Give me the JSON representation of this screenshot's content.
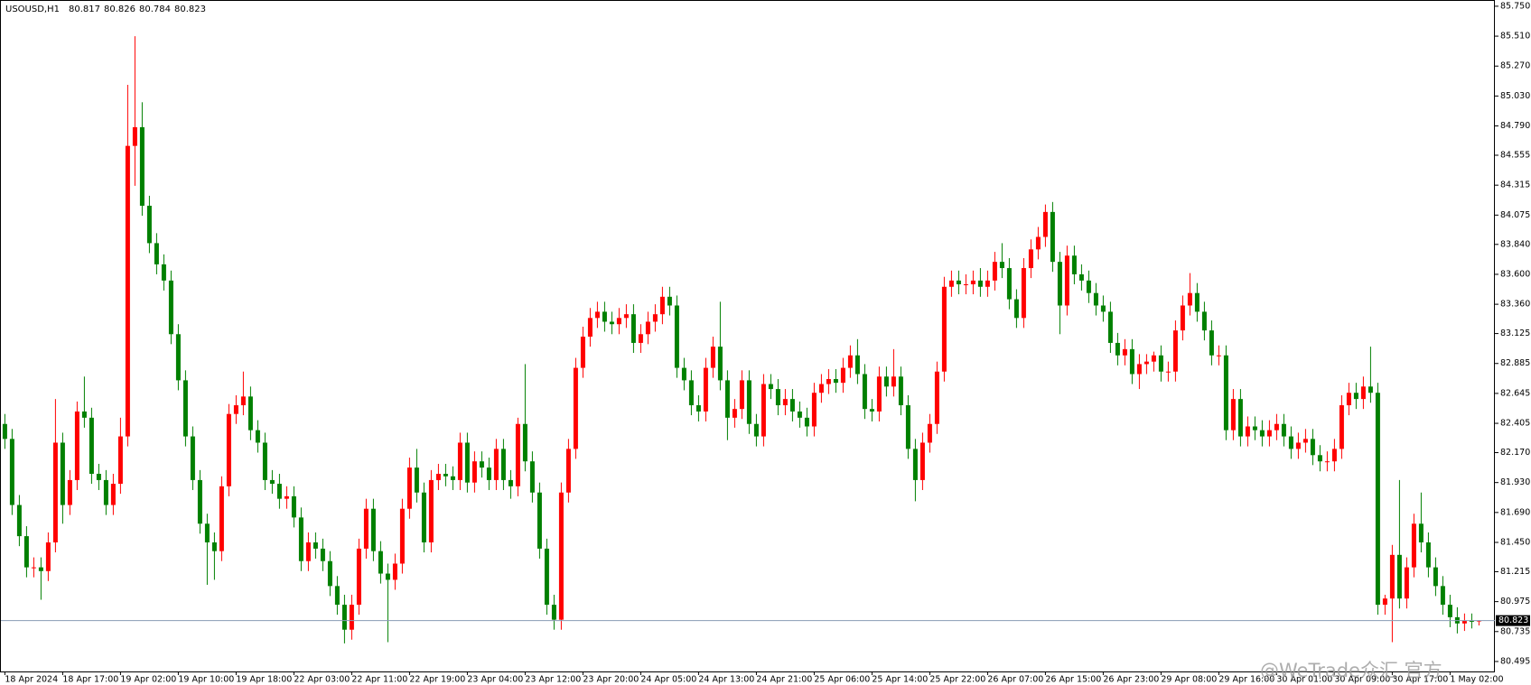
{
  "chart_data": {
    "type": "candlestick",
    "symbol": "USOUSD,H1",
    "watermark": "@WeTrade众汇 官方",
    "up_color": "#ff0000",
    "down_color": "#008000",
    "price_line_color": "#8a9bb5",
    "ylim": [
      80.415,
      85.8
    ],
    "yticks": [
      {
        "value": 85.75,
        "label": "85.750"
      },
      {
        "value": 85.51,
        "label": "85.510"
      },
      {
        "value": 85.27,
        "label": "85.270"
      },
      {
        "value": 85.03,
        "label": "85.030"
      },
      {
        "value": 84.79,
        "label": "84.790"
      },
      {
        "value": 84.555,
        "label": "84.555"
      },
      {
        "value": 84.315,
        "label": "84.315"
      },
      {
        "value": 84.075,
        "label": "84.075"
      },
      {
        "value": 83.84,
        "label": "83.840"
      },
      {
        "value": 83.6,
        "label": "83.600"
      },
      {
        "value": 83.36,
        "label": "83.360"
      },
      {
        "value": 83.125,
        "label": "83.125"
      },
      {
        "value": 82.885,
        "label": "82.885"
      },
      {
        "value": 82.645,
        "label": "82.645"
      },
      {
        "value": 82.405,
        "label": "82.405"
      },
      {
        "value": 82.17,
        "label": "82.170"
      },
      {
        "value": 81.93,
        "label": "81.930"
      },
      {
        "value": 81.69,
        "label": "81.690"
      },
      {
        "value": 81.45,
        "label": "81.450"
      },
      {
        "value": 81.215,
        "label": "81.215"
      },
      {
        "value": 80.975,
        "label": "80.975"
      },
      {
        "value": 80.735,
        "label": "80.735"
      },
      {
        "value": 80.495,
        "label": "80.495"
      }
    ],
    "categories": [
      "18 Apr 2024",
      null,
      null,
      null,
      null,
      null,
      null,
      null,
      "18 Apr 17:00",
      null,
      null,
      null,
      null,
      null,
      null,
      null,
      "19 Apr 02:00",
      null,
      null,
      null,
      null,
      null,
      null,
      null,
      "19 Apr 10:00",
      null,
      null,
      null,
      null,
      null,
      null,
      null,
      "19 Apr 18:00",
      null,
      null,
      null,
      null,
      null,
      null,
      null,
      "22 Apr 03:00",
      null,
      null,
      null,
      null,
      null,
      null,
      null,
      "22 Apr 11:00",
      null,
      null,
      null,
      null,
      null,
      null,
      null,
      "22 Apr 19:00",
      null,
      null,
      null,
      null,
      null,
      null,
      null,
      "23 Apr 04:00",
      null,
      null,
      null,
      null,
      null,
      null,
      null,
      "23 Apr 12:00",
      null,
      null,
      null,
      null,
      null,
      null,
      null,
      "23 Apr 20:00",
      null,
      null,
      null,
      null,
      null,
      null,
      null,
      "24 Apr 05:00",
      null,
      null,
      null,
      null,
      null,
      null,
      null,
      "24 Apr 13:00",
      null,
      null,
      null,
      null,
      null,
      null,
      null,
      "24 Apr 21:00",
      null,
      null,
      null,
      null,
      null,
      null,
      null,
      "25 Apr 06:00",
      null,
      null,
      null,
      null,
      null,
      null,
      null,
      "25 Apr 14:00",
      null,
      null,
      null,
      null,
      null,
      null,
      null,
      "25 Apr 22:00",
      null,
      null,
      null,
      null,
      null,
      null,
      null,
      "26 Apr 07:00",
      null,
      null,
      null,
      null,
      null,
      null,
      null,
      "26 Apr 15:00",
      null,
      null,
      null,
      null,
      null,
      null,
      null,
      "26 Apr 23:00",
      null,
      null,
      null,
      null,
      null,
      null,
      null,
      "29 Apr 08:00",
      null,
      null,
      null,
      null,
      null,
      null,
      null,
      "29 Apr 16:00",
      null,
      null,
      null,
      null,
      null,
      null,
      null,
      "30 Apr 01:00",
      null,
      null,
      null,
      null,
      null,
      null,
      null,
      "30 Apr 09:00",
      null,
      null,
      null,
      null,
      null,
      null,
      null,
      "30 Apr 17:00",
      null,
      null,
      null,
      null,
      null,
      null,
      null,
      "1 May 02:00",
      null,
      null,
      null,
      null
    ],
    "open": [
      82.4,
      82.28,
      81.75,
      81.5,
      81.25,
      81.25,
      81.22,
      81.45,
      82.25,
      81.75,
      81.95,
      82.5,
      82.45,
      82.0,
      81.95,
      81.75,
      81.92,
      82.3,
      84.63,
      84.78,
      84.15,
      83.85,
      83.68,
      83.55,
      83.12,
      82.75,
      82.3,
      81.95,
      81.6,
      81.45,
      81.38,
      81.9,
      82.48,
      82.55,
      82.62,
      82.35,
      82.25,
      81.95,
      81.92,
      81.8,
      81.82,
      81.65,
      81.3,
      81.45,
      81.4,
      81.3,
      81.1,
      80.95,
      80.75,
      80.95,
      81.4,
      81.72,
      81.38,
      81.2,
      81.15,
      81.28,
      81.72,
      82.05,
      81.85,
      81.45,
      81.95,
      82.0,
      81.98,
      81.95,
      82.25,
      81.93,
      82.1,
      82.05,
      81.95,
      82.2,
      81.95,
      81.9,
      82.4,
      82.1,
      81.85,
      81.4,
      80.95,
      80.83,
      81.85,
      82.2,
      82.85,
      83.1,
      83.25,
      83.3,
      83.22,
      83.2,
      83.25,
      83.28,
      83.05,
      83.12,
      83.22,
      83.28,
      83.42,
      83.35,
      82.85,
      82.75,
      82.55,
      82.5,
      82.85,
      83.02,
      82.75,
      82.45,
      82.52,
      82.75,
      82.4,
      82.3,
      82.72,
      82.68,
      82.55,
      82.6,
      82.5,
      82.45,
      82.38,
      82.65,
      82.72,
      82.76,
      82.73,
      82.85,
      82.95,
      82.8,
      82.52,
      82.5,
      82.78,
      82.7,
      82.78,
      82.55,
      82.2,
      81.95,
      82.25,
      82.4,
      82.82,
      83.5,
      83.55,
      83.52,
      83.52,
      83.55,
      83.5,
      83.55,
      83.7,
      83.65,
      83.4,
      83.25,
      83.65,
      83.8,
      83.9,
      84.1,
      83.7,
      83.35,
      83.75,
      83.6,
      83.55,
      83.45,
      83.35,
      83.3,
      83.05,
      82.95,
      83.0,
      82.8,
      82.88,
      82.9,
      82.95,
      82.82,
      82.82,
      83.15,
      83.35,
      83.45,
      83.3,
      83.15,
      82.95,
      82.95,
      82.35,
      82.6,
      82.3,
      82.38,
      82.35,
      82.3,
      82.35,
      82.4,
      82.3,
      82.2,
      82.25,
      82.28,
      82.15,
      82.1,
      82.1,
      82.2,
      82.55,
      82.65,
      82.6,
      82.7,
      82.65,
      80.95,
      81.0,
      81.35,
      81.0,
      81.25,
      81.6,
      81.45,
      81.25,
      81.1,
      80.95,
      80.85,
      80.8,
      80.82,
      80.817
    ],
    "high": [
      82.48,
      82.36,
      81.83,
      81.58,
      81.33,
      81.33,
      81.53,
      82.6,
      82.33,
      82.03,
      82.58,
      82.78,
      82.53,
      82.08,
      82.03,
      82.0,
      82.45,
      85.12,
      85.51,
      84.98,
      84.23,
      83.93,
      83.76,
      83.63,
      83.2,
      82.83,
      82.38,
      82.03,
      81.68,
      81.53,
      81.98,
      82.56,
      82.63,
      82.82,
      82.7,
      82.43,
      82.33,
      82.03,
      82.0,
      81.9,
      81.9,
      81.73,
      81.53,
      81.53,
      81.48,
      81.38,
      81.18,
      81.03,
      81.03,
      81.48,
      81.8,
      81.8,
      81.46,
      81.28,
      81.36,
      81.8,
      82.13,
      82.2,
      81.93,
      82.03,
      82.08,
      82.08,
      82.06,
      82.33,
      82.33,
      82.18,
      82.18,
      82.13,
      82.28,
      82.28,
      82.03,
      82.45,
      82.88,
      82.18,
      81.93,
      81.48,
      81.03,
      81.93,
      82.28,
      82.93,
      83.18,
      83.33,
      83.38,
      83.38,
      83.3,
      83.33,
      83.36,
      83.36,
      83.2,
      83.3,
      83.36,
      83.5,
      83.5,
      83.43,
      82.93,
      82.83,
      82.63,
      82.93,
      83.1,
      83.38,
      82.83,
      82.6,
      82.83,
      82.83,
      82.48,
      82.8,
      82.8,
      82.76,
      82.68,
      82.68,
      82.58,
      82.53,
      82.73,
      82.8,
      82.84,
      82.84,
      82.93,
      83.03,
      83.08,
      82.88,
      82.6,
      82.86,
      82.86,
      83.0,
      82.86,
      82.63,
      82.28,
      82.33,
      82.48,
      82.9,
      83.58,
      83.63,
      83.63,
      83.6,
      83.63,
      83.65,
      83.63,
      83.78,
      83.85,
      83.73,
      83.48,
      83.73,
      83.88,
      83.98,
      84.16,
      84.18,
      83.78,
      83.83,
      83.83,
      83.68,
      83.63,
      83.53,
      83.43,
      83.38,
      83.13,
      83.08,
      83.08,
      82.96,
      82.96,
      82.98,
      83.03,
      82.9,
      83.23,
      83.43,
      83.61,
      83.53,
      83.38,
      83.23,
      83.03,
      83.03,
      82.68,
      82.68,
      82.46,
      82.46,
      82.43,
      82.43,
      82.48,
      82.48,
      82.38,
      82.33,
      82.36,
      82.36,
      82.23,
      82.18,
      82.28,
      82.63,
      82.73,
      82.73,
      82.78,
      83.02,
      82.73,
      81.03,
      81.43,
      81.95,
      81.33,
      81.68,
      81.85,
      81.53,
      81.33,
      81.18,
      81.03,
      80.93,
      80.88,
      80.88,
      80.826
    ],
    "low": [
      82.2,
      81.67,
      81.42,
      81.17,
      81.17,
      80.99,
      81.14,
      81.37,
      81.6,
      81.67,
      81.87,
      82.37,
      81.92,
      81.87,
      81.67,
      81.67,
      81.84,
      82.22,
      84.31,
      84.07,
      83.77,
      83.6,
      83.47,
      83.04,
      82.67,
      82.22,
      81.87,
      81.52,
      81.11,
      81.15,
      81.3,
      81.82,
      82.4,
      82.47,
      82.27,
      82.17,
      81.87,
      81.84,
      81.72,
      81.72,
      81.57,
      81.22,
      81.22,
      81.32,
      81.22,
      81.02,
      80.87,
      80.64,
      80.67,
      80.87,
      81.32,
      81.3,
      81.12,
      80.65,
      81.07,
      81.2,
      81.64,
      81.77,
      81.37,
      81.37,
      81.87,
      81.9,
      81.87,
      81.87,
      81.85,
      81.85,
      81.97,
      81.87,
      81.87,
      81.87,
      81.8,
      81.82,
      82.02,
      81.77,
      81.32,
      80.87,
      80.75,
      80.75,
      81.77,
      82.12,
      82.77,
      83.02,
      83.17,
      83.14,
      83.12,
      83.12,
      83.17,
      82.97,
      82.97,
      83.04,
      83.14,
      83.2,
      83.27,
      82.77,
      82.67,
      82.47,
      82.42,
      82.42,
      82.77,
      82.67,
      82.27,
      82.37,
      82.44,
      82.32,
      82.22,
      82.22,
      82.6,
      82.47,
      82.47,
      82.42,
      82.37,
      82.3,
      82.3,
      82.57,
      82.64,
      82.65,
      82.65,
      82.77,
      82.72,
      82.44,
      82.42,
      82.42,
      82.62,
      82.62,
      82.47,
      82.12,
      81.78,
      81.87,
      82.17,
      82.32,
      82.74,
      83.42,
      83.44,
      83.44,
      83.44,
      83.42,
      83.42,
      83.47,
      83.57,
      83.32,
      83.17,
      83.17,
      83.57,
      83.72,
      83.82,
      83.62,
      83.12,
      83.27,
      83.52,
      83.47,
      83.37,
      83.27,
      83.22,
      82.97,
      82.87,
      82.87,
      82.72,
      82.68,
      82.8,
      82.82,
      82.74,
      82.74,
      82.74,
      83.07,
      83.27,
      83.22,
      83.07,
      82.87,
      82.87,
      82.27,
      82.27,
      82.22,
      82.22,
      82.27,
      82.22,
      82.22,
      82.27,
      82.22,
      82.12,
      82.12,
      82.17,
      82.07,
      82.02,
      82.02,
      82.02,
      82.12,
      82.47,
      82.52,
      82.52,
      82.57,
      80.87,
      80.87,
      80.65,
      80.92,
      80.92,
      81.17,
      81.37,
      81.17,
      81.02,
      80.87,
      80.77,
      80.72,
      80.74,
      80.76,
      80.784
    ],
    "close": [
      82.28,
      81.75,
      81.5,
      81.25,
      81.25,
      81.22,
      81.45,
      82.25,
      81.75,
      81.95,
      82.5,
      82.45,
      82.0,
      81.95,
      81.75,
      81.92,
      82.3,
      84.63,
      84.78,
      84.15,
      83.85,
      83.68,
      83.55,
      83.12,
      82.75,
      82.3,
      81.95,
      81.6,
      81.45,
      81.38,
      81.9,
      82.48,
      82.55,
      82.62,
      82.35,
      82.25,
      81.95,
      81.92,
      81.8,
      81.82,
      81.65,
      81.3,
      81.45,
      81.4,
      81.3,
      81.1,
      80.95,
      80.75,
      80.95,
      81.4,
      81.72,
      81.38,
      81.2,
      81.15,
      81.28,
      81.72,
      82.05,
      81.85,
      81.45,
      81.95,
      82.0,
      81.98,
      81.95,
      82.25,
      81.93,
      82.1,
      82.05,
      81.95,
      82.2,
      81.95,
      81.9,
      82.4,
      82.1,
      81.85,
      81.4,
      80.95,
      80.83,
      81.85,
      82.2,
      82.85,
      83.1,
      83.25,
      83.3,
      83.22,
      83.2,
      83.25,
      83.28,
      83.05,
      83.12,
      83.22,
      83.28,
      83.42,
      83.35,
      82.85,
      82.75,
      82.55,
      82.5,
      82.85,
      83.02,
      82.75,
      82.45,
      82.52,
      82.75,
      82.4,
      82.3,
      82.72,
      82.68,
      82.55,
      82.6,
      82.5,
      82.45,
      82.38,
      82.65,
      82.72,
      82.76,
      82.73,
      82.85,
      82.95,
      82.8,
      82.52,
      82.5,
      82.78,
      82.7,
      82.78,
      82.55,
      82.2,
      81.95,
      82.25,
      82.4,
      82.82,
      83.5,
      83.55,
      83.52,
      83.52,
      83.55,
      83.5,
      83.55,
      83.7,
      83.65,
      83.4,
      83.25,
      83.65,
      83.8,
      83.9,
      84.1,
      83.7,
      83.35,
      83.75,
      83.6,
      83.55,
      83.45,
      83.35,
      83.3,
      83.05,
      82.95,
      83.0,
      82.8,
      82.88,
      82.9,
      82.95,
      82.82,
      82.82,
      83.15,
      83.35,
      83.45,
      83.3,
      83.15,
      82.95,
      82.95,
      82.35,
      82.6,
      82.3,
      82.38,
      82.35,
      82.3,
      82.35,
      82.4,
      82.3,
      82.2,
      82.25,
      82.28,
      82.15,
      82.1,
      82.1,
      82.2,
      82.55,
      82.65,
      82.6,
      82.7,
      82.65,
      80.95,
      81.0,
      81.35,
      81.0,
      81.25,
      81.6,
      81.45,
      81.25,
      81.1,
      80.95,
      80.85,
      80.8,
      80.82,
      80.817,
      80.823
    ]
  }
}
